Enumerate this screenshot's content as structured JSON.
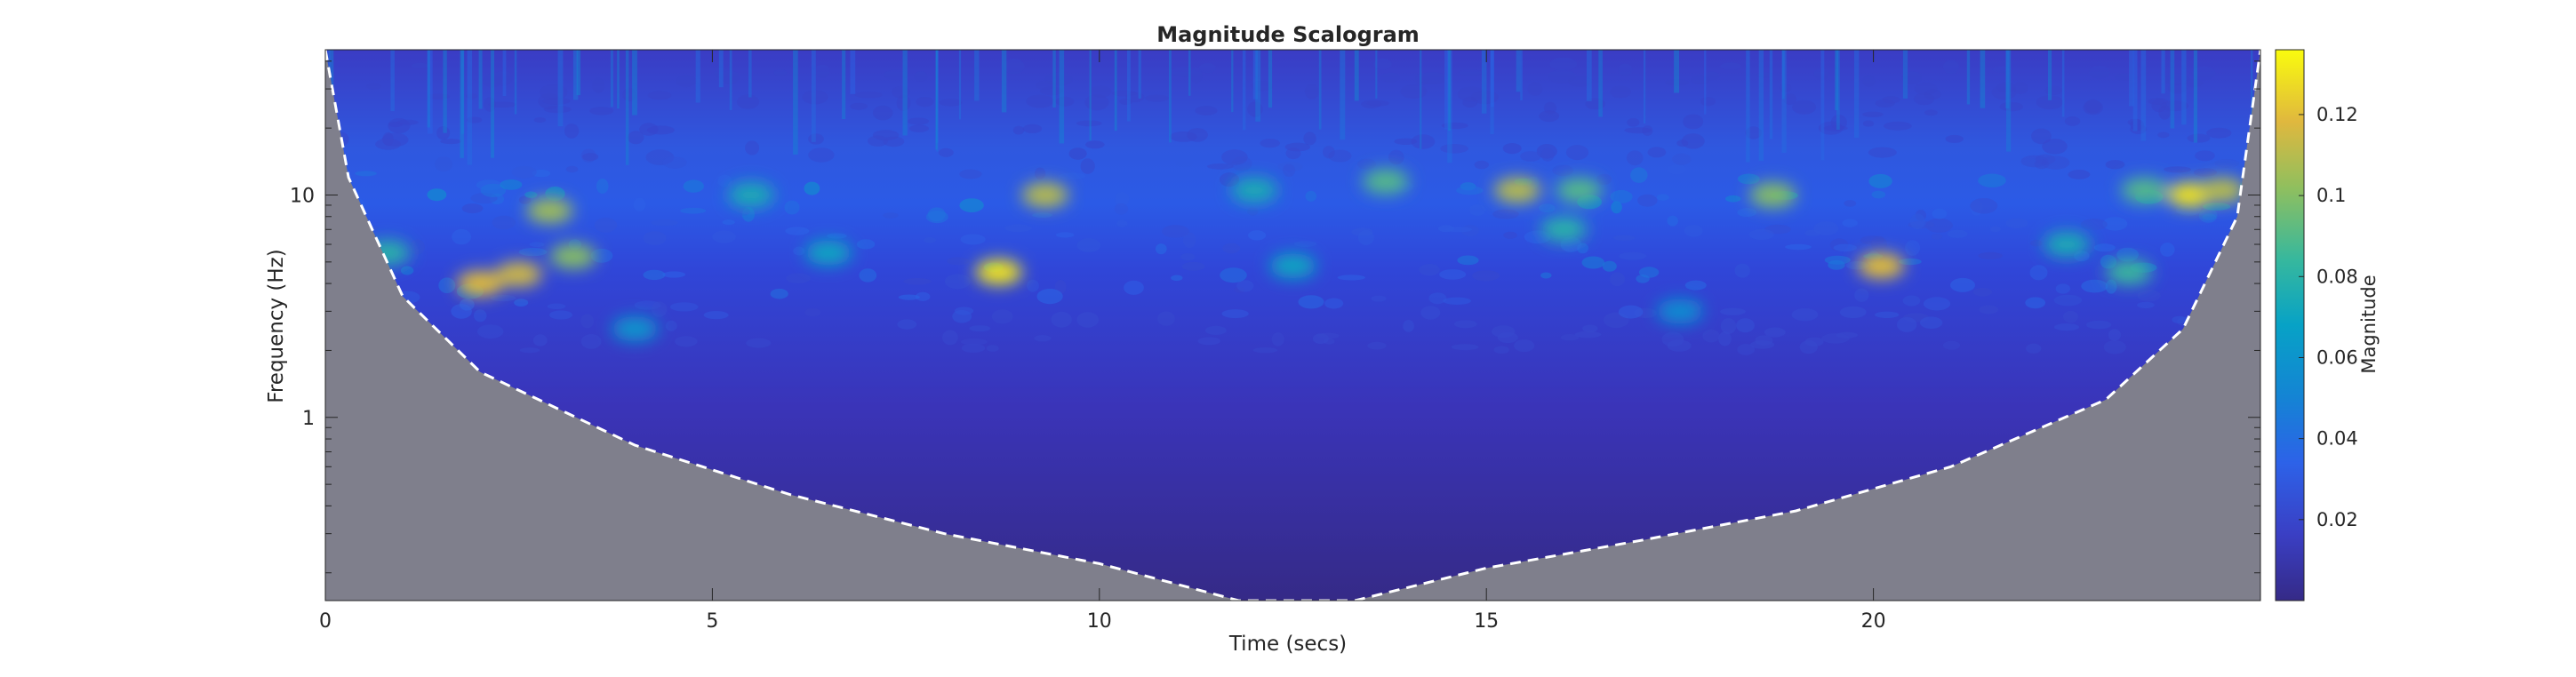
{
  "chart_data": {
    "type": "heatmap",
    "title": "Magnitude Scalogram",
    "xlabel": "Time (secs)",
    "ylabel": "Frequency (Hz)",
    "x_scale": "linear",
    "y_scale": "log",
    "xlim": [
      0,
      25
    ],
    "ylim": [
      0.15,
      45
    ],
    "x_ticks": [
      0,
      5,
      10,
      15,
      20
    ],
    "x_tick_labels": [
      "0",
      "5",
      "10",
      "15",
      "20"
    ],
    "y_ticks": [
      1,
      10
    ],
    "y_tick_labels": [
      "1",
      "10"
    ],
    "colorbar": {
      "label": "Magnitude",
      "range": [
        0,
        0.136
      ],
      "ticks": [
        0.02,
        0.04,
        0.06,
        0.08,
        0.1,
        0.12
      ],
      "tick_labels": [
        "0.02",
        "0.04",
        "0.06",
        "0.08",
        "0.1",
        "0.12"
      ],
      "colormap": "parula"
    },
    "cone_of_influence": {
      "style": "white dashed",
      "outside_color": "#7f7f8c",
      "points": [
        {
          "t": 0.0,
          "f": 45
        },
        {
          "t": 0.3,
          "f": 12
        },
        {
          "t": 1.0,
          "f": 3.5
        },
        {
          "t": 2.0,
          "f": 1.6
        },
        {
          "t": 4.0,
          "f": 0.75
        },
        {
          "t": 6.0,
          "f": 0.45
        },
        {
          "t": 8.0,
          "f": 0.3
        },
        {
          "t": 10.0,
          "f": 0.22
        },
        {
          "t": 11.8,
          "f": 0.15
        },
        {
          "t": 13.3,
          "f": 0.15
        },
        {
          "t": 15.0,
          "f": 0.21
        },
        {
          "t": 17.0,
          "f": 0.28
        },
        {
          "t": 19.0,
          "f": 0.38
        },
        {
          "t": 21.0,
          "f": 0.6
        },
        {
          "t": 23.0,
          "f": 1.2
        },
        {
          "t": 24.0,
          "f": 2.5
        },
        {
          "t": 24.7,
          "f": 8
        },
        {
          "t": 25.0,
          "f": 45
        }
      ]
    },
    "hotspots": [
      {
        "t": 2.0,
        "f": 4.0,
        "magnitude": 0.12
      },
      {
        "t": 2.5,
        "f": 4.4,
        "magnitude": 0.115
      },
      {
        "t": 3.2,
        "f": 5.3,
        "magnitude": 0.1
      },
      {
        "t": 2.9,
        "f": 8.5,
        "magnitude": 0.105
      },
      {
        "t": 0.8,
        "f": 5.5,
        "magnitude": 0.08
      },
      {
        "t": 8.7,
        "f": 4.5,
        "magnitude": 0.13
      },
      {
        "t": 9.3,
        "f": 10.0,
        "magnitude": 0.11
      },
      {
        "t": 12.0,
        "f": 10.5,
        "magnitude": 0.075
      },
      {
        "t": 13.7,
        "f": 11.5,
        "magnitude": 0.09
      },
      {
        "t": 15.4,
        "f": 10.5,
        "magnitude": 0.11
      },
      {
        "t": 16.2,
        "f": 10.5,
        "magnitude": 0.09
      },
      {
        "t": 18.7,
        "f": 10.0,
        "magnitude": 0.1
      },
      {
        "t": 20.1,
        "f": 4.8,
        "magnitude": 0.12
      },
      {
        "t": 23.5,
        "f": 10.5,
        "magnitude": 0.09
      },
      {
        "t": 24.1,
        "f": 10.0,
        "magnitude": 0.13
      },
      {
        "t": 24.5,
        "f": 10.5,
        "magnitude": 0.11
      },
      {
        "t": 5.5,
        "f": 10.0,
        "magnitude": 0.075
      },
      {
        "t": 6.5,
        "f": 5.5,
        "magnitude": 0.07
      },
      {
        "t": 16.0,
        "f": 7.0,
        "magnitude": 0.08
      },
      {
        "t": 22.5,
        "f": 6.0,
        "magnitude": 0.075
      },
      {
        "t": 23.3,
        "f": 4.5,
        "magnitude": 0.085
      },
      {
        "t": 12.5,
        "f": 4.8,
        "magnitude": 0.07
      },
      {
        "t": 4.0,
        "f": 2.5,
        "magnitude": 0.06
      },
      {
        "t": 17.5,
        "f": 3.0,
        "magnitude": 0.055
      }
    ]
  }
}
